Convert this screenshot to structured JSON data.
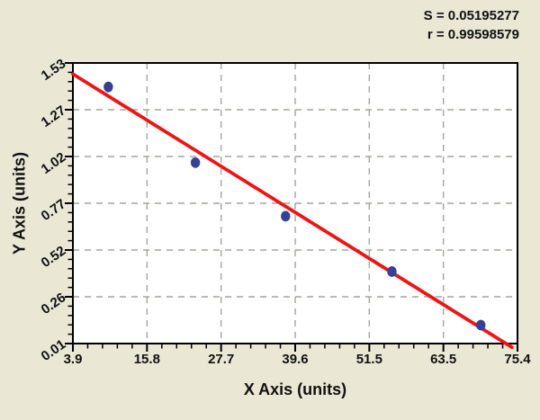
{
  "chart_data": {
    "type": "scatter",
    "title": "",
    "xlabel": "X Axis (units)",
    "ylabel": "Y Axis (units)",
    "annotations": [
      "S = 0.05195277",
      "r = 0.99598579"
    ],
    "x_ticks": [
      "3.9",
      "15.8",
      "27.7",
      "39.6",
      "51.5",
      "63.5",
      "75.4"
    ],
    "y_ticks": [
      "0.01",
      "0.26",
      "0.52",
      "0.77",
      "1.02",
      "1.27",
      "1.53"
    ],
    "xlim": [
      3.9,
      75.4
    ],
    "ylim": [
      0.01,
      1.53
    ],
    "minor_divisions_per_major": 5,
    "grid": "dashed gridlines at interior major ticks, both axes",
    "legend_position": "none",
    "points": [
      {
        "x": 9.6,
        "y": 1.4
      },
      {
        "x": 23.6,
        "y": 0.99
      },
      {
        "x": 38.1,
        "y": 0.7
      },
      {
        "x": 55.2,
        "y": 0.4
      },
      {
        "x": 69.5,
        "y": 0.11
      }
    ],
    "regression_line": {
      "x1": 3.9,
      "y1": 1.47,
      "x2": 74.5,
      "y2": -0.01
    },
    "colors": {
      "background": "#eae7d5",
      "plot_bg": "#ffffff",
      "point": "#32429b",
      "line": "#f21212",
      "grid": "#a3a39e",
      "axis": "#000000",
      "text": "#111111"
    }
  }
}
